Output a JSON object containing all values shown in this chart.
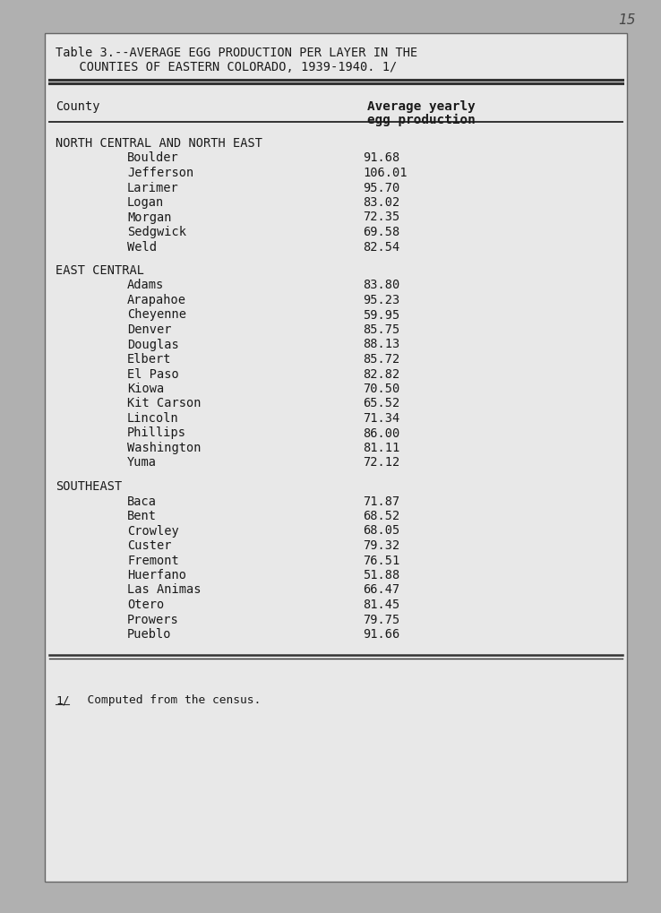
{
  "page_number": "15",
  "title_line1": "Table 3.--AVERAGE EGG PRODUCTION PER LAYER IN THE",
  "title_line2": "  COUNTIES OF EASTERN COLORADO, 1939-1940. 1/",
  "col1_header": "County",
  "col2_header_line1": "Average yearly",
  "col2_header_line2": "egg production",
  "sections": [
    {
      "section_header": "NORTH CENTRAL AND NORTH EAST",
      "rows": [
        {
          "county": "Boulder",
          "value": "91.68"
        },
        {
          "county": "Jefferson",
          "value": "106.01"
        },
        {
          "county": "Larimer",
          "value": "95.70"
        },
        {
          "county": "Logan",
          "value": "83.02"
        },
        {
          "county": "Morgan",
          "value": "72.35"
        },
        {
          "county": "Sedgwick",
          "value": "69.58"
        },
        {
          "county": "Weld",
          "value": "82.54"
        }
      ]
    },
    {
      "section_header": "EAST CENTRAL",
      "rows": [
        {
          "county": "Adams",
          "value": "83.80"
        },
        {
          "county": "Arapahoe",
          "value": "95.23"
        },
        {
          "county": "Cheyenne",
          "value": "59.95"
        },
        {
          "county": "Denver",
          "value": "85.75"
        },
        {
          "county": "Douglas",
          "value": "88.13"
        },
        {
          "county": "Elbert",
          "value": "85.72"
        },
        {
          "county": "El Paso",
          "value": "82.82"
        },
        {
          "county": "Kiowa",
          "value": "70.50"
        },
        {
          "county": "Kit Carson",
          "value": "65.52"
        },
        {
          "county": "Lincoln",
          "value": "71.34"
        },
        {
          "county": "Phillips",
          "value": "86.00"
        },
        {
          "county": "Washington",
          "value": "81.11"
        },
        {
          "county": "Yuma",
          "value": "72.12"
        }
      ]
    },
    {
      "section_header": "SOUTHEAST",
      "rows": [
        {
          "county": "Baca",
          "value": "71.87"
        },
        {
          "county": "Bent",
          "value": "68.52"
        },
        {
          "county": "Crowley",
          "value": "68.05"
        },
        {
          "county": "Custer",
          "value": "79.32"
        },
        {
          "county": "Fremont",
          "value": "76.51"
        },
        {
          "county": "Huerfano",
          "value": "51.88"
        },
        {
          "county": "Las Animas",
          "value": "66.47"
        },
        {
          "county": "Otero",
          "value": "81.45"
        },
        {
          "county": "Prowers",
          "value": "79.75"
        },
        {
          "county": "Pueblo",
          "value": "91.66"
        }
      ]
    }
  ],
  "footnote_marker": "1/",
  "footnote_text": "  Computed from the census.",
  "outer_bg": "#b0b0b0",
  "inner_bg": "#e8e8e8",
  "text_color": "#1a1a1a",
  "line_color": "#333333",
  "font_size": 9.8,
  "footnote_font_size": 9.5
}
